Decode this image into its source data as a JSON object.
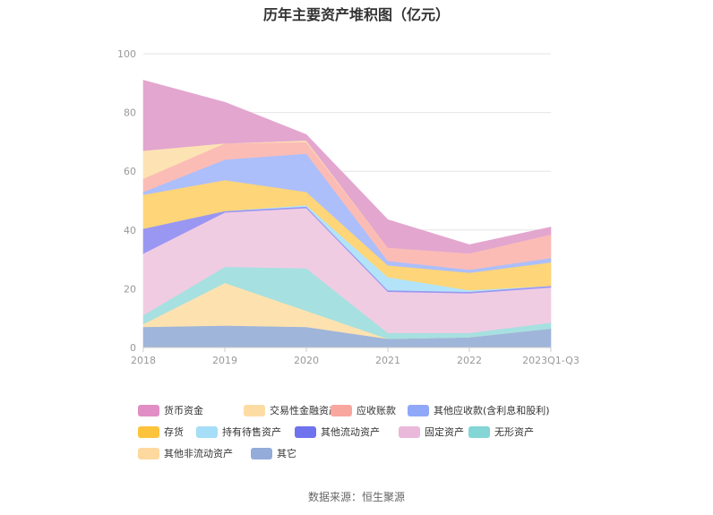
{
  "title": "历年主要资产堆积图（亿元）",
  "source": "数据来源：恒生聚源",
  "chart_data": {
    "type": "area",
    "stacked": true,
    "title": "历年主要资产堆积图（亿元）",
    "xlabel": "",
    "ylabel": "",
    "categories": [
      "2018",
      "2019",
      "2020",
      "2021",
      "2022",
      "2023Q1-Q3"
    ],
    "ylim": [
      0,
      100
    ],
    "yticks": [
      0,
      20,
      40,
      60,
      80,
      100
    ],
    "grid": true,
    "legend_position": "bottom",
    "series": [
      {
        "name": "其它",
        "color": "#9fb5da",
        "values": [
          7.0,
          7.5,
          7.0,
          3.0,
          3.5,
          6.5
        ]
      },
      {
        "name": "其他非流动资产",
        "color": "#fde2b0",
        "values": [
          1.0,
          14.5,
          5.5,
          0.0,
          0.0,
          0.0
        ]
      },
      {
        "name": "无形资产",
        "color": "#a7e0e0",
        "values": [
          3.0,
          5.5,
          14.5,
          2.0,
          1.5,
          2.0
        ]
      },
      {
        "name": "固定资产",
        "color": "#f0cce3",
        "values": [
          21.0,
          18.5,
          20.5,
          14.0,
          13.5,
          12.0
        ]
      },
      {
        "name": "其他流动资产",
        "color": "#9a97f2",
        "values": [
          8.5,
          0.5,
          0.5,
          0.5,
          0.5,
          0.5
        ]
      },
      {
        "name": "持有待售资产",
        "color": "#b3e3f9",
        "values": [
          0.0,
          0.0,
          0.5,
          4.5,
          0.5,
          0.0
        ]
      },
      {
        "name": "存货",
        "color": "#fed578",
        "values": [
          11.5,
          10.5,
          4.5,
          4.0,
          6.0,
          8.0
        ]
      },
      {
        "name": "其他应收款(含利息和股利)",
        "color": "#acbffb",
        "values": [
          1.0,
          7.0,
          13.0,
          1.5,
          1.0,
          1.5
        ]
      },
      {
        "name": "应收账款",
        "color": "#fcbcb6",
        "values": [
          4.5,
          5.5,
          4.0,
          4.5,
          5.5,
          8.0
        ]
      },
      {
        "name": "交易性金融资产",
        "color": "#fde3b4",
        "values": [
          9.5,
          0.0,
          0.5,
          0.0,
          0.0,
          0.0
        ]
      },
      {
        "name": "货币资金",
        "color": "#e3a6cf",
        "values": [
          24.0,
          14.0,
          2.0,
          9.5,
          3.0,
          2.5
        ]
      }
    ],
    "legend": [
      {
        "name": "货币资金",
        "color": "#e08ec4"
      },
      {
        "name": "交易性金融资产",
        "color": "#fddca4"
      },
      {
        "name": "应收账款",
        "color": "#f9a79e"
      },
      {
        "name": "其他应收款(含利息和股利)",
        "color": "#8fa8f8"
      },
      {
        "name": "存货",
        "color": "#fdc33c"
      },
      {
        "name": "持有待售资产",
        "color": "#a6ddf7"
      },
      {
        "name": "其他流动资产",
        "color": "#6f73ee"
      },
      {
        "name": "固定资产",
        "color": "#eab8da"
      },
      {
        "name": "无形资产",
        "color": "#84d6d6"
      },
      {
        "name": "其他非流动资产",
        "color": "#fdd9a0"
      },
      {
        "name": "其它",
        "color": "#93acd9"
      }
    ]
  }
}
